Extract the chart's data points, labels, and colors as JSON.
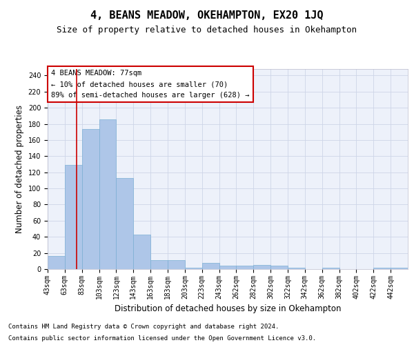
{
  "title": "4, BEANS MEADOW, OKEHAMPTON, EX20 1JQ",
  "subtitle": "Size of property relative to detached houses in Okehampton",
  "xlabel": "Distribution of detached houses by size in Okehampton",
  "ylabel": "Number of detached properties",
  "footnote1": "Contains HM Land Registry data © Crown copyright and database right 2024.",
  "footnote2": "Contains public sector information licensed under the Open Government Licence v3.0.",
  "annotation_title": "4 BEANS MEADOW: 77sqm",
  "annotation_line1": "← 10% of detached houses are smaller (70)",
  "annotation_line2": "89% of semi-detached houses are larger (628) →",
  "property_size": 77,
  "categories": [
    "43sqm",
    "63sqm",
    "83sqm",
    "103sqm",
    "123sqm",
    "143sqm",
    "163sqm",
    "183sqm",
    "203sqm",
    "223sqm",
    "243sqm",
    "262sqm",
    "282sqm",
    "302sqm",
    "322sqm",
    "342sqm",
    "362sqm",
    "382sqm",
    "402sqm",
    "422sqm",
    "442sqm"
  ],
  "values": [
    16,
    129,
    174,
    186,
    113,
    43,
    11,
    11,
    2,
    8,
    4,
    4,
    5,
    4,
    2,
    0,
    2,
    0,
    0,
    2,
    2
  ],
  "bar_color": "#aec6e8",
  "bar_edge_color": "#7bafd4",
  "vline_color": "#cc0000",
  "annotation_box_color": "#cc0000",
  "ylim": [
    0,
    248
  ],
  "yticks": [
    0,
    20,
    40,
    60,
    80,
    100,
    120,
    140,
    160,
    180,
    200,
    220,
    240
  ],
  "grid_color": "#cdd5e8",
  "bg_color": "#edf1fa",
  "title_fontsize": 11,
  "subtitle_fontsize": 9,
  "axis_label_fontsize": 8.5,
  "tick_fontsize": 7,
  "annotation_fontsize": 7.5,
  "footnote_fontsize": 6.5
}
